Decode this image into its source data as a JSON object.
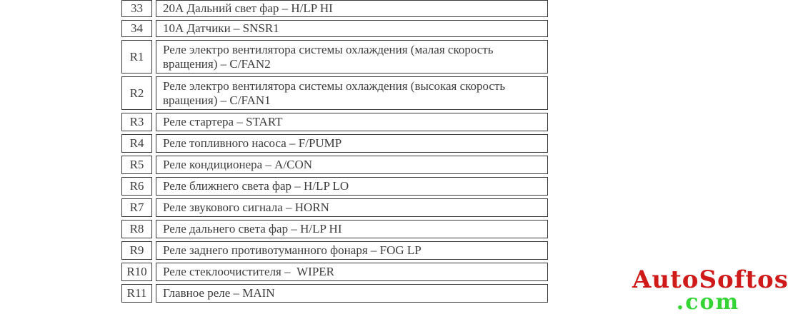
{
  "table": {
    "rows": [
      {
        "id": "33",
        "description": "20А Дальний свет фар – H/LP HI"
      },
      {
        "id": "34",
        "description": "10А Датчики – SNSR1"
      },
      {
        "id": "R1",
        "description": "Реле электро вентилятора системы охлаждения (малая скорость вращения) – C/FAN2"
      },
      {
        "id": "R2",
        "description": "Реле электро вентилятора системы охлаждения (высокая скорость вращения) – C/FAN1"
      },
      {
        "id": "R3",
        "description": "Реле стартера – START"
      },
      {
        "id": "R4",
        "description": "Реле топливного насоса – F/PUMP"
      },
      {
        "id": "R5",
        "description": "Реле кондиционера – A/CON"
      },
      {
        "id": "R6",
        "description": "Реле ближнего света фар – H/LP LO"
      },
      {
        "id": "R7",
        "description": "Реле звукового сигнала – HORN"
      },
      {
        "id": "R8",
        "description": "Реле дальнего света фар – H/LP HI"
      },
      {
        "id": "R9",
        "description": "Реле заднего противотуманного фонаря – FOG LP"
      },
      {
        "id": "R10",
        "description": "Реле стеклоочистителя –  WIPER"
      },
      {
        "id": "R11",
        "description": "Главное реле – MAIN"
      }
    ]
  },
  "watermark": {
    "brand": "AutoSoftos",
    "tld": ".com",
    "brand_color": "#cf1a1a",
    "tld_color": "#35d435"
  },
  "colors": {
    "text": "#3c3c3c",
    "border": "#3a3a3a",
    "background": "#ffffff"
  }
}
